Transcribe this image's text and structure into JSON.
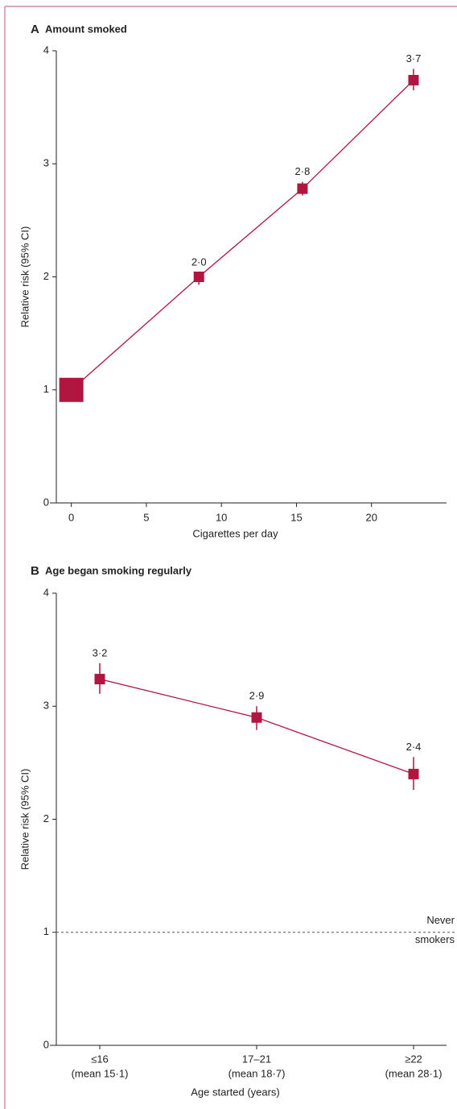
{
  "chart_data": [
    {
      "type": "line",
      "panel_label": "A",
      "title": "Amount smoked",
      "x_label": "Cigarettes per day",
      "y_label": "Relative risk (95% CI)",
      "x": [
        0,
        8.5,
        15.4,
        22.8
      ],
      "series": [
        {
          "color": "#b0163f",
          "values": [
            1,
            2.0,
            2.78,
            3.74
          ],
          "ci_low": [
            null,
            1.93,
            2.72,
            3.65
          ],
          "ci_high": [
            null,
            2.04,
            2.84,
            3.84
          ],
          "value_labels": [
            null,
            "2·0",
            "2·8",
            "3·7"
          ]
        }
      ],
      "xlim": [
        -1,
        25
      ],
      "xticks": [
        0,
        5,
        10,
        15,
        20
      ],
      "ylim": [
        0,
        4
      ],
      "yticks": [
        0,
        1,
        2,
        3,
        4
      ]
    },
    {
      "type": "line",
      "panel_label": "B",
      "title": "Age began smoking regularly",
      "x_label": "Age started (years)",
      "y_label": "Relative risk (95% CI)",
      "categories": [
        "≤16",
        "17–21",
        "≥22"
      ],
      "category_notes": [
        "(mean 15·1)",
        "(mean 18·7)",
        "(mean 28·1)"
      ],
      "series": [
        {
          "color": "#b0163f",
          "values": [
            3.24,
            2.9,
            2.4
          ],
          "ci_low": [
            3.11,
            2.79,
            2.26
          ],
          "ci_high": [
            3.38,
            3.0,
            2.55
          ],
          "value_labels": [
            "3·2",
            "2·9",
            "2·4"
          ]
        }
      ],
      "reference_line": {
        "value": 1,
        "label_lines": [
          "Never",
          "smokers"
        ]
      },
      "ylim": [
        0,
        4
      ],
      "yticks": [
        0,
        1,
        2,
        3,
        4
      ]
    }
  ]
}
